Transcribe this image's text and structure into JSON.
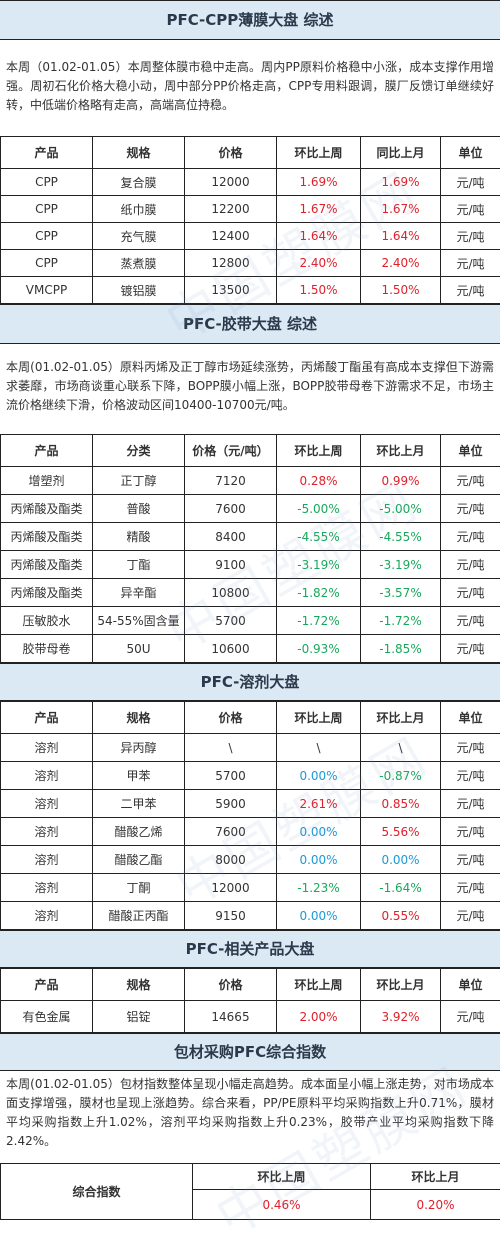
{
  "cpp": {
    "title": "PFC-CPP薄膜大盘 综述",
    "summary": "本周（01.02-01.05）本周整体膜市稳中走高。周内PP原料价格稳中小涨，成本支撑作用增强。周初石化价格大稳小动，周中部分PP价格走高，CPP专用料跟调，膜厂反馈订单继续好转，中低端价格略有走高，高端高位持稳。",
    "headers": [
      "产品",
      "规格",
      "价格",
      "环比上周",
      "同比上月",
      "单位"
    ],
    "rows": [
      [
        "CPP",
        "复合膜",
        "12000",
        "1.69%",
        "1.69%",
        "元/吨"
      ],
      [
        "CPP",
        "纸巾膜",
        "12200",
        "1.67%",
        "1.67%",
        "元/吨"
      ],
      [
        "CPP",
        "充气膜",
        "12400",
        "1.64%",
        "1.64%",
        "元/吨"
      ],
      [
        "CPP",
        "蒸煮膜",
        "12800",
        "2.40%",
        "2.40%",
        "元/吨"
      ],
      [
        "VMCPP",
        "镀铝膜",
        "13500",
        "1.50%",
        "1.50%",
        "元/吨"
      ]
    ]
  },
  "tape": {
    "title": "PFC-胶带大盘 综述",
    "summary": "本周(01.02-01.05）原料丙烯及正丁醇市场延续涨势，丙烯酸丁酯虽有高成本支撑但下游需求萎靡，市场商谈重心联系下降，BOPP膜小幅上涨，BOPP胶带母卷下游需求不足，市场主流价格继续下滑，价格波动区间10400-10700元/吨。",
    "headers": [
      "产品",
      "分类",
      "价格（元/吨）",
      "环比上周",
      "环比上月",
      "单位"
    ],
    "rows": [
      [
        "增塑剂",
        "正丁醇",
        "7120",
        "0.28%",
        "0.99%",
        "元/吨"
      ],
      [
        "丙烯酸及酯类",
        "普酸",
        "7600",
        "-5.00%",
        "-5.00%",
        "元/吨"
      ],
      [
        "丙烯酸及酯类",
        "精酸",
        "8400",
        "-4.55%",
        "-4.55%",
        "元/吨"
      ],
      [
        "丙烯酸及酯类",
        "丁酯",
        "9100",
        "-3.19%",
        "-3.19%",
        "元/吨"
      ],
      [
        "丙烯酸及酯类",
        "异辛酯",
        "10800",
        "-1.82%",
        "-3.57%",
        "元/吨"
      ],
      [
        "压敏胶水",
        "54-55%固含量",
        "5700",
        "-1.72%",
        "-1.72%",
        "元/吨"
      ],
      [
        "胶带母卷",
        "50U",
        "10600",
        "-0.93%",
        "-1.85%",
        "元/吨"
      ]
    ]
  },
  "solvent": {
    "title": "PFC-溶剂大盘",
    "headers": [
      "产品",
      "规格",
      "价格",
      "环比上周",
      "环比上月",
      "单位"
    ],
    "rows": [
      [
        "溶剂",
        "异丙醇",
        "\\",
        "\\",
        "\\",
        "元/吨"
      ],
      [
        "溶剂",
        "甲苯",
        "5700",
        "0.00%",
        "-0.87%",
        "元/吨"
      ],
      [
        "溶剂",
        "二甲苯",
        "5900",
        "2.61%",
        "0.85%",
        "元/吨"
      ],
      [
        "溶剂",
        "醋酸乙烯",
        "7600",
        "0.00%",
        "5.56%",
        "元/吨"
      ],
      [
        "溶剂",
        "醋酸乙酯",
        "8000",
        "0.00%",
        "0.00%",
        "元/吨"
      ],
      [
        "溶剂",
        "丁酮",
        "12000",
        "-1.23%",
        "-1.64%",
        "元/吨"
      ],
      [
        "溶剂",
        "醋酸正丙酯",
        "9150",
        "0.00%",
        "0.55%",
        "元/吨"
      ]
    ]
  },
  "related": {
    "title": "PFC-相关产品大盘",
    "headers": [
      "产品",
      "规格",
      "价格",
      "环比上周",
      "环比上月",
      "单位"
    ],
    "rows": [
      [
        "有色金属",
        "铝锭",
        "14665",
        "2.00%",
        "3.92%",
        "元/吨"
      ]
    ]
  },
  "index": {
    "title": "包材采购PFC综合指数",
    "summary": "本周(01.02-01.05）包材指数整体呈现小幅走高趋势。成本面呈小幅上涨走势，对市场成本面支撑增强，膜材也呈现上涨趋势。综合来看，PP/PE原料平均采购指数上升0.71%，膜材平均采购指数上升1.02%，溶剂平均采购指数上升0.23%，胶带产业平均采购指数下降2.42%。",
    "row_label": "综合指数",
    "headers": [
      "环比上周",
      "环比上月"
    ],
    "values": [
      "0.46%",
      "0.20%"
    ]
  },
  "watermark": "中国塑膜网",
  "colors": {
    "up": "#e0202a",
    "down": "#1aa85c",
    "flat": "#1a9ad8",
    "header_bg": "#dbe9f5"
  }
}
